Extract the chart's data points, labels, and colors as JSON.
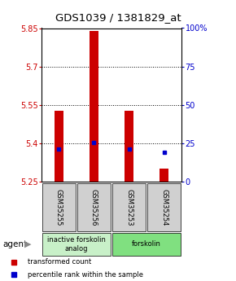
{
  "title": "GDS1039 / 1381829_at",
  "samples": [
    "GSM35255",
    "GSM35256",
    "GSM35253",
    "GSM35254"
  ],
  "red_values": [
    5.525,
    5.84,
    5.525,
    5.3
  ],
  "red_bottoms": [
    5.25,
    5.25,
    5.25,
    5.25
  ],
  "blue_values": [
    5.375,
    5.402,
    5.375,
    5.362
  ],
  "ylim_left": [
    5.25,
    5.85
  ],
  "ylim_right": [
    0,
    100
  ],
  "yticks_left": [
    5.25,
    5.4,
    5.55,
    5.7,
    5.85
  ],
  "ytick_labels_left": [
    "5.25",
    "5.4",
    "5.55",
    "5.7",
    "5.85"
  ],
  "yticks_right": [
    0,
    25,
    50,
    75,
    100
  ],
  "ytick_labels_right": [
    "0",
    "25",
    "50",
    "75",
    "100%"
  ],
  "grid_lines": [
    5.4,
    5.55,
    5.7
  ],
  "groups": [
    {
      "label": "inactive forskolin\nanalog",
      "samples": [
        0,
        1
      ],
      "color": "#c8f0c8"
    },
    {
      "label": "forskolin",
      "samples": [
        2,
        3
      ],
      "color": "#80e080"
    }
  ],
  "bar_width": 0.25,
  "red_color": "#cc0000",
  "blue_color": "#0000cc",
  "agent_label": "agent",
  "legend_red": "transformed count",
  "legend_blue": "percentile rank within the sample",
  "title_fontsize": 9.5,
  "tick_fontsize": 7,
  "sample_fontsize": 6,
  "group_fontsize": 6,
  "legend_fontsize": 6
}
